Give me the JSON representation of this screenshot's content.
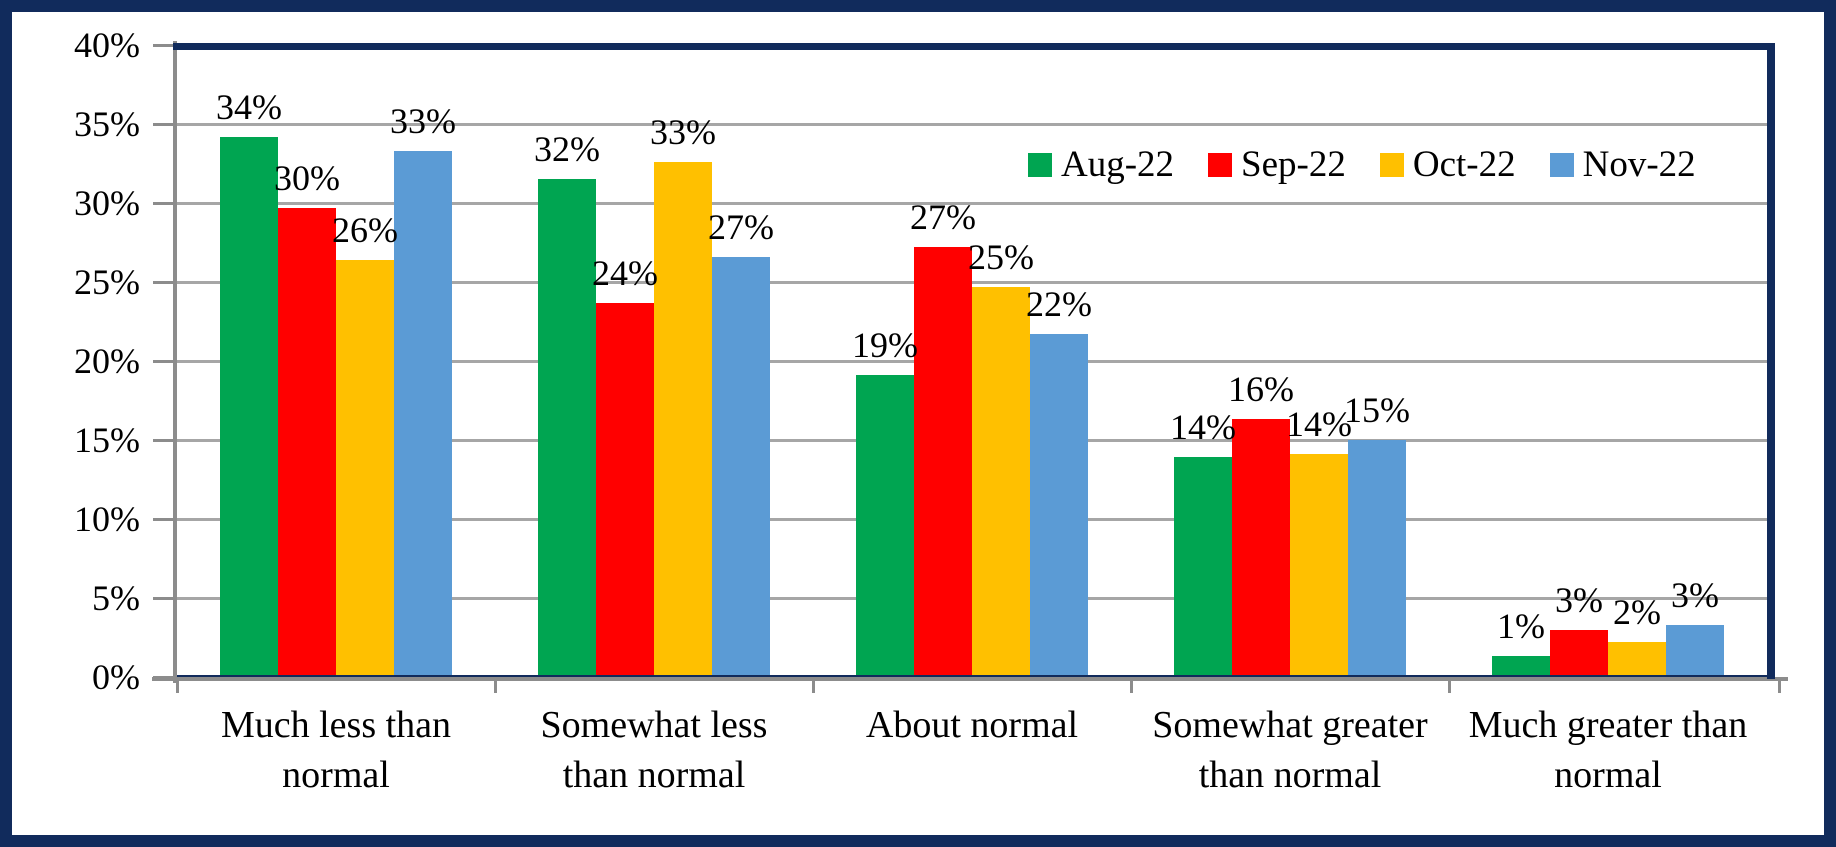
{
  "chart_data": {
    "type": "bar",
    "title": "",
    "categories": [
      "Much less than normal",
      "Somewhat less than normal",
      "About normal",
      "Somewhat greater than normal",
      "Much greater than normal"
    ],
    "category_lines": [
      [
        "Much less than",
        "normal"
      ],
      [
        "Somewhat less",
        "than normal"
      ],
      [
        "About normal"
      ],
      [
        "Somewhat greater",
        "than normal"
      ],
      [
        "Much greater than",
        "normal"
      ]
    ],
    "series": [
      {
        "name": "Aug-22",
        "color": "#00A551",
        "values": [
          34,
          32,
          19,
          14,
          1
        ],
        "labels": [
          "34%",
          "32%",
          "19%",
          "14%",
          "1%"
        ],
        "bar_heights_pct": [
          34.2,
          31.5,
          19.1,
          13.9,
          1.3
        ]
      },
      {
        "name": "Sep-22",
        "color": "#FF0000",
        "values": [
          30,
          24,
          27,
          16,
          3
        ],
        "labels": [
          "30%",
          "24%",
          "27%",
          "16%",
          "3%"
        ],
        "bar_heights_pct": [
          29.7,
          23.7,
          27.2,
          16.3,
          3.0
        ]
      },
      {
        "name": "Oct-22",
        "color": "#FFC000",
        "values": [
          26,
          33,
          25,
          14,
          2
        ],
        "labels": [
          "26%",
          "33%",
          "25%",
          "14%",
          "2%"
        ],
        "bar_heights_pct": [
          26.4,
          32.6,
          24.7,
          14.1,
          2.2
        ]
      },
      {
        "name": "Nov-22",
        "color": "#5B9BD5",
        "values": [
          33,
          27,
          22,
          15,
          3
        ],
        "labels": [
          "33%",
          "27%",
          "22%",
          "15%",
          "3%"
        ],
        "bar_heights_pct": [
          33.3,
          26.6,
          21.7,
          15.0,
          3.3
        ]
      }
    ],
    "y_axis": {
      "min": 0,
      "max": 40,
      "step": 5,
      "tick_labels": [
        "0%",
        "5%",
        "10%",
        "15%",
        "20%",
        "25%",
        "30%",
        "35%",
        "40%"
      ]
    },
    "xlabel": "",
    "ylabel": "",
    "grid": true,
    "legend": {
      "position": "top-right-inside",
      "items": [
        "Aug-22",
        "Sep-22",
        "Oct-22",
        "Nov-22"
      ]
    },
    "colors": {
      "frame": "#112B5C",
      "gridline": "#A6A6A6",
      "axis": "#8C8C8C",
      "background": "#FFFFFF",
      "text": "#000000"
    }
  }
}
